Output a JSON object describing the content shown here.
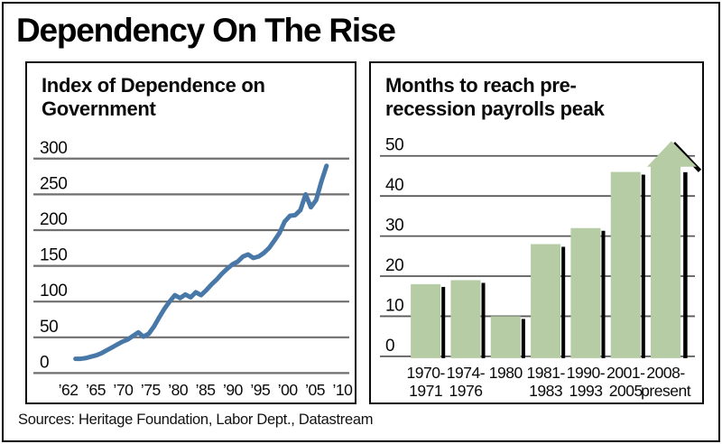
{
  "title": "Dependency On The Rise",
  "sources": "Sources: Heritage Foundation, Labor Dept., Datastream",
  "colors": {
    "line": "#4878a8",
    "bar_fill": "#b6cca5",
    "bar_shadow": "#000000",
    "gridline": "#6f6f6f",
    "ink": "#0a0a0a"
  },
  "chart_data": [
    {
      "type": "line",
      "title": "Index of Dependence on Government",
      "title_lines": [
        "Index of Dependence on",
        "Government"
      ],
      "x": [
        1962,
        1963,
        1964,
        1965,
        1966,
        1967,
        1968,
        1969,
        1970,
        1971,
        1972,
        1973,
        1974,
        1975,
        1976,
        1977,
        1978,
        1979,
        1980,
        1981,
        1982,
        1983,
        1984,
        1985,
        1986,
        1987,
        1988,
        1989,
        1990,
        1991,
        1992,
        1993,
        1994,
        1995,
        1996,
        1997,
        1998,
        1999,
        2000,
        2001,
        2002,
        2003,
        2004,
        2005,
        2006,
        2007,
        2008,
        2009,
        2010
      ],
      "values": [
        20,
        20,
        21,
        23,
        25,
        28,
        32,
        36,
        40,
        44,
        47,
        52,
        57,
        51,
        55,
        65,
        78,
        90,
        100,
        109,
        105,
        110,
        106,
        113,
        109,
        116,
        124,
        131,
        139,
        146,
        152,
        156,
        163,
        166,
        161,
        163,
        168,
        175,
        185,
        196,
        212,
        220,
        221,
        228,
        250,
        232,
        242,
        268,
        290
      ],
      "x_tick_labels": [
        "’62",
        "’65",
        "’70",
        "’75",
        "’80",
        "’85",
        "’90",
        "’95",
        "’00",
        "’05",
        "’10"
      ],
      "y_ticks": [
        0,
        50,
        100,
        150,
        200,
        250,
        300
      ],
      "y_tick_labels": [
        "0",
        "50",
        "100",
        "150",
        "200",
        "250",
        "300"
      ],
      "ylim": [
        0,
        300
      ],
      "grid": true,
      "legend": "none",
      "line_color": "#4878a8"
    },
    {
      "type": "bar",
      "title": "Months to reach pre-recession payrolls peak",
      "title_lines": [
        "Months to reach pre-",
        "recession payrolls peak"
      ],
      "categories": [
        [
          "1970-",
          "1971"
        ],
        [
          "1974-",
          "1976"
        ],
        [
          "1980"
        ],
        [
          "1981-",
          "1983"
        ],
        [
          "1990-",
          "1993"
        ],
        [
          "2001-",
          "2005"
        ],
        [
          "2008-",
          "present"
        ]
      ],
      "values": [
        18,
        19,
        10,
        28,
        32,
        46,
        48
      ],
      "last_bar_style": "up-arrow",
      "last_bar_note": "2008-present bar drawn as upward arrow past top gridline (recovery ongoing)",
      "y_ticks": [
        0,
        10,
        20,
        30,
        40,
        50
      ],
      "y_tick_labels": [
        "0",
        "10",
        "20",
        "30",
        "40",
        "50"
      ],
      "ylim": [
        0,
        50
      ],
      "grid": true,
      "legend": "none",
      "bar_color": "#b6cca5",
      "shadow_color": "#000000"
    }
  ]
}
